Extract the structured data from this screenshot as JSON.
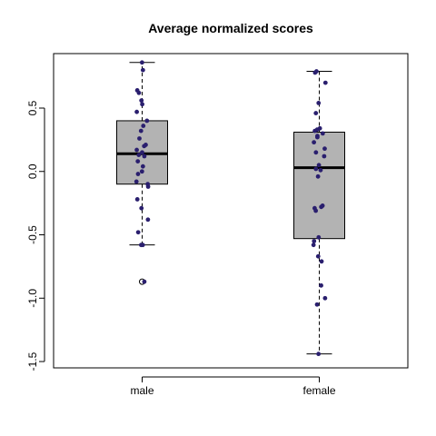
{
  "chart_data": {
    "type": "box",
    "title": "Average normalized scores",
    "xlabel": "",
    "ylabel": "",
    "ylim": [
      -1.55,
      0.93
    ],
    "yticks": [
      -1.5,
      -1.0,
      -0.5,
      0.0,
      0.5
    ],
    "ytick_labels": [
      "-1.5",
      "-1.0",
      "-0.5",
      "0.0",
      "0.5"
    ],
    "categories": [
      "male",
      "female"
    ],
    "box_fill": "#b3b3b3",
    "point_color": "#2a1f6e",
    "boxes": [
      {
        "name": "male",
        "whisker_low": -0.58,
        "q1": -0.1,
        "median": 0.14,
        "q3": 0.4,
        "whisker_high": 0.86,
        "outliers": [
          -0.87
        ],
        "points": [
          0.86,
          0.8,
          0.64,
          0.62,
          0.56,
          0.53,
          0.47,
          0.4,
          0.36,
          0.32,
          0.26,
          0.21,
          0.2,
          0.17,
          0.15,
          0.13,
          0.12,
          0.08,
          0.04,
          0.0,
          -0.02,
          -0.08,
          -0.1,
          -0.12,
          -0.22,
          -0.29,
          -0.38,
          -0.48,
          -0.58,
          -0.58,
          -0.87
        ]
      },
      {
        "name": "female",
        "whisker_low": -1.44,
        "q1": -0.53,
        "median": 0.03,
        "q3": 0.31,
        "whisker_high": 0.79,
        "outliers": [],
        "points": [
          0.79,
          0.78,
          0.7,
          0.54,
          0.46,
          0.34,
          0.33,
          0.32,
          0.3,
          0.28,
          0.27,
          0.23,
          0.18,
          0.15,
          0.12,
          0.05,
          0.02,
          0.01,
          -0.04,
          -0.27,
          -0.28,
          -0.29,
          -0.31,
          -0.52,
          -0.55,
          -0.58,
          -0.67,
          -0.71,
          -0.9,
          -1.0,
          -1.05,
          -1.44
        ]
      }
    ]
  }
}
